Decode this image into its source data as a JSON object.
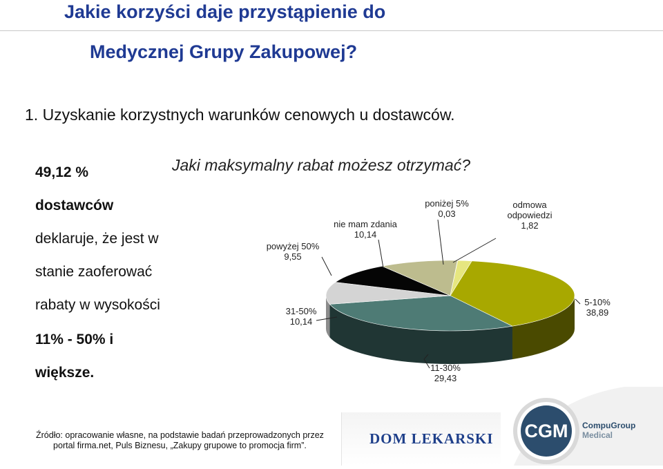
{
  "slide": {
    "title_line1": "Jakie korzyści daje przystąpienie do",
    "title_line2": "Medycznej Grupy Zakupowej?",
    "heading": "1. Uzyskanie korzystnych warunków cenowych u dostawców.",
    "side_text": [
      "49,12 %",
      "dostawców",
      "deklaruje, że jest w",
      "stanie zaoferować",
      "rabaty w wysokości",
      "11% - 50% i",
      "większe."
    ],
    "source_line1": "Źródło: opracowanie własne, na podstawie badań przeprowadzonych przez",
    "source_line2": "portal firma.net, Puls Biznesu, „Zakupy grupowe to promocja firm”.",
    "logo_dom": "DOM LEKARSKI",
    "logo_cgm": "CGM",
    "logo_cgm_name1": "CompuGroup",
    "logo_cgm_name2": "Medical"
  },
  "chart_data": {
    "type": "pie",
    "title": "Jaki maksymalny rabat możesz otrzymać?",
    "slices": [
      {
        "label": "5-10%",
        "value": 38.89,
        "value_label": "38,89",
        "color": "#a8a800",
        "side": "#4a4a00"
      },
      {
        "label": "11-30%",
        "value": 29.43,
        "value_label": "29,43",
        "color": "#4e7b75",
        "side": "#203634"
      },
      {
        "label": "31-50%",
        "value": 10.14,
        "value_label": "10,14",
        "color": "#d4d4d4",
        "side": "#8c8c8c"
      },
      {
        "label": "powyżej 50%",
        "value": 9.55,
        "value_label": "9,55",
        "color": "#050505",
        "side": "#000000"
      },
      {
        "label": "nie mam zdania",
        "value": 10.14,
        "value_label": "10,14",
        "color": "#bdbc8e",
        "side": "#76754f"
      },
      {
        "label": "poniżej 5%",
        "value": 0.03,
        "value_label": "0,03",
        "color": "#a0a0a0",
        "side": "#606060"
      },
      {
        "label": "odmowa odpowiedzi",
        "value": 1.82,
        "value_label": "1,82",
        "color": "#e6e680",
        "side": "#8a8a44"
      }
    ]
  }
}
